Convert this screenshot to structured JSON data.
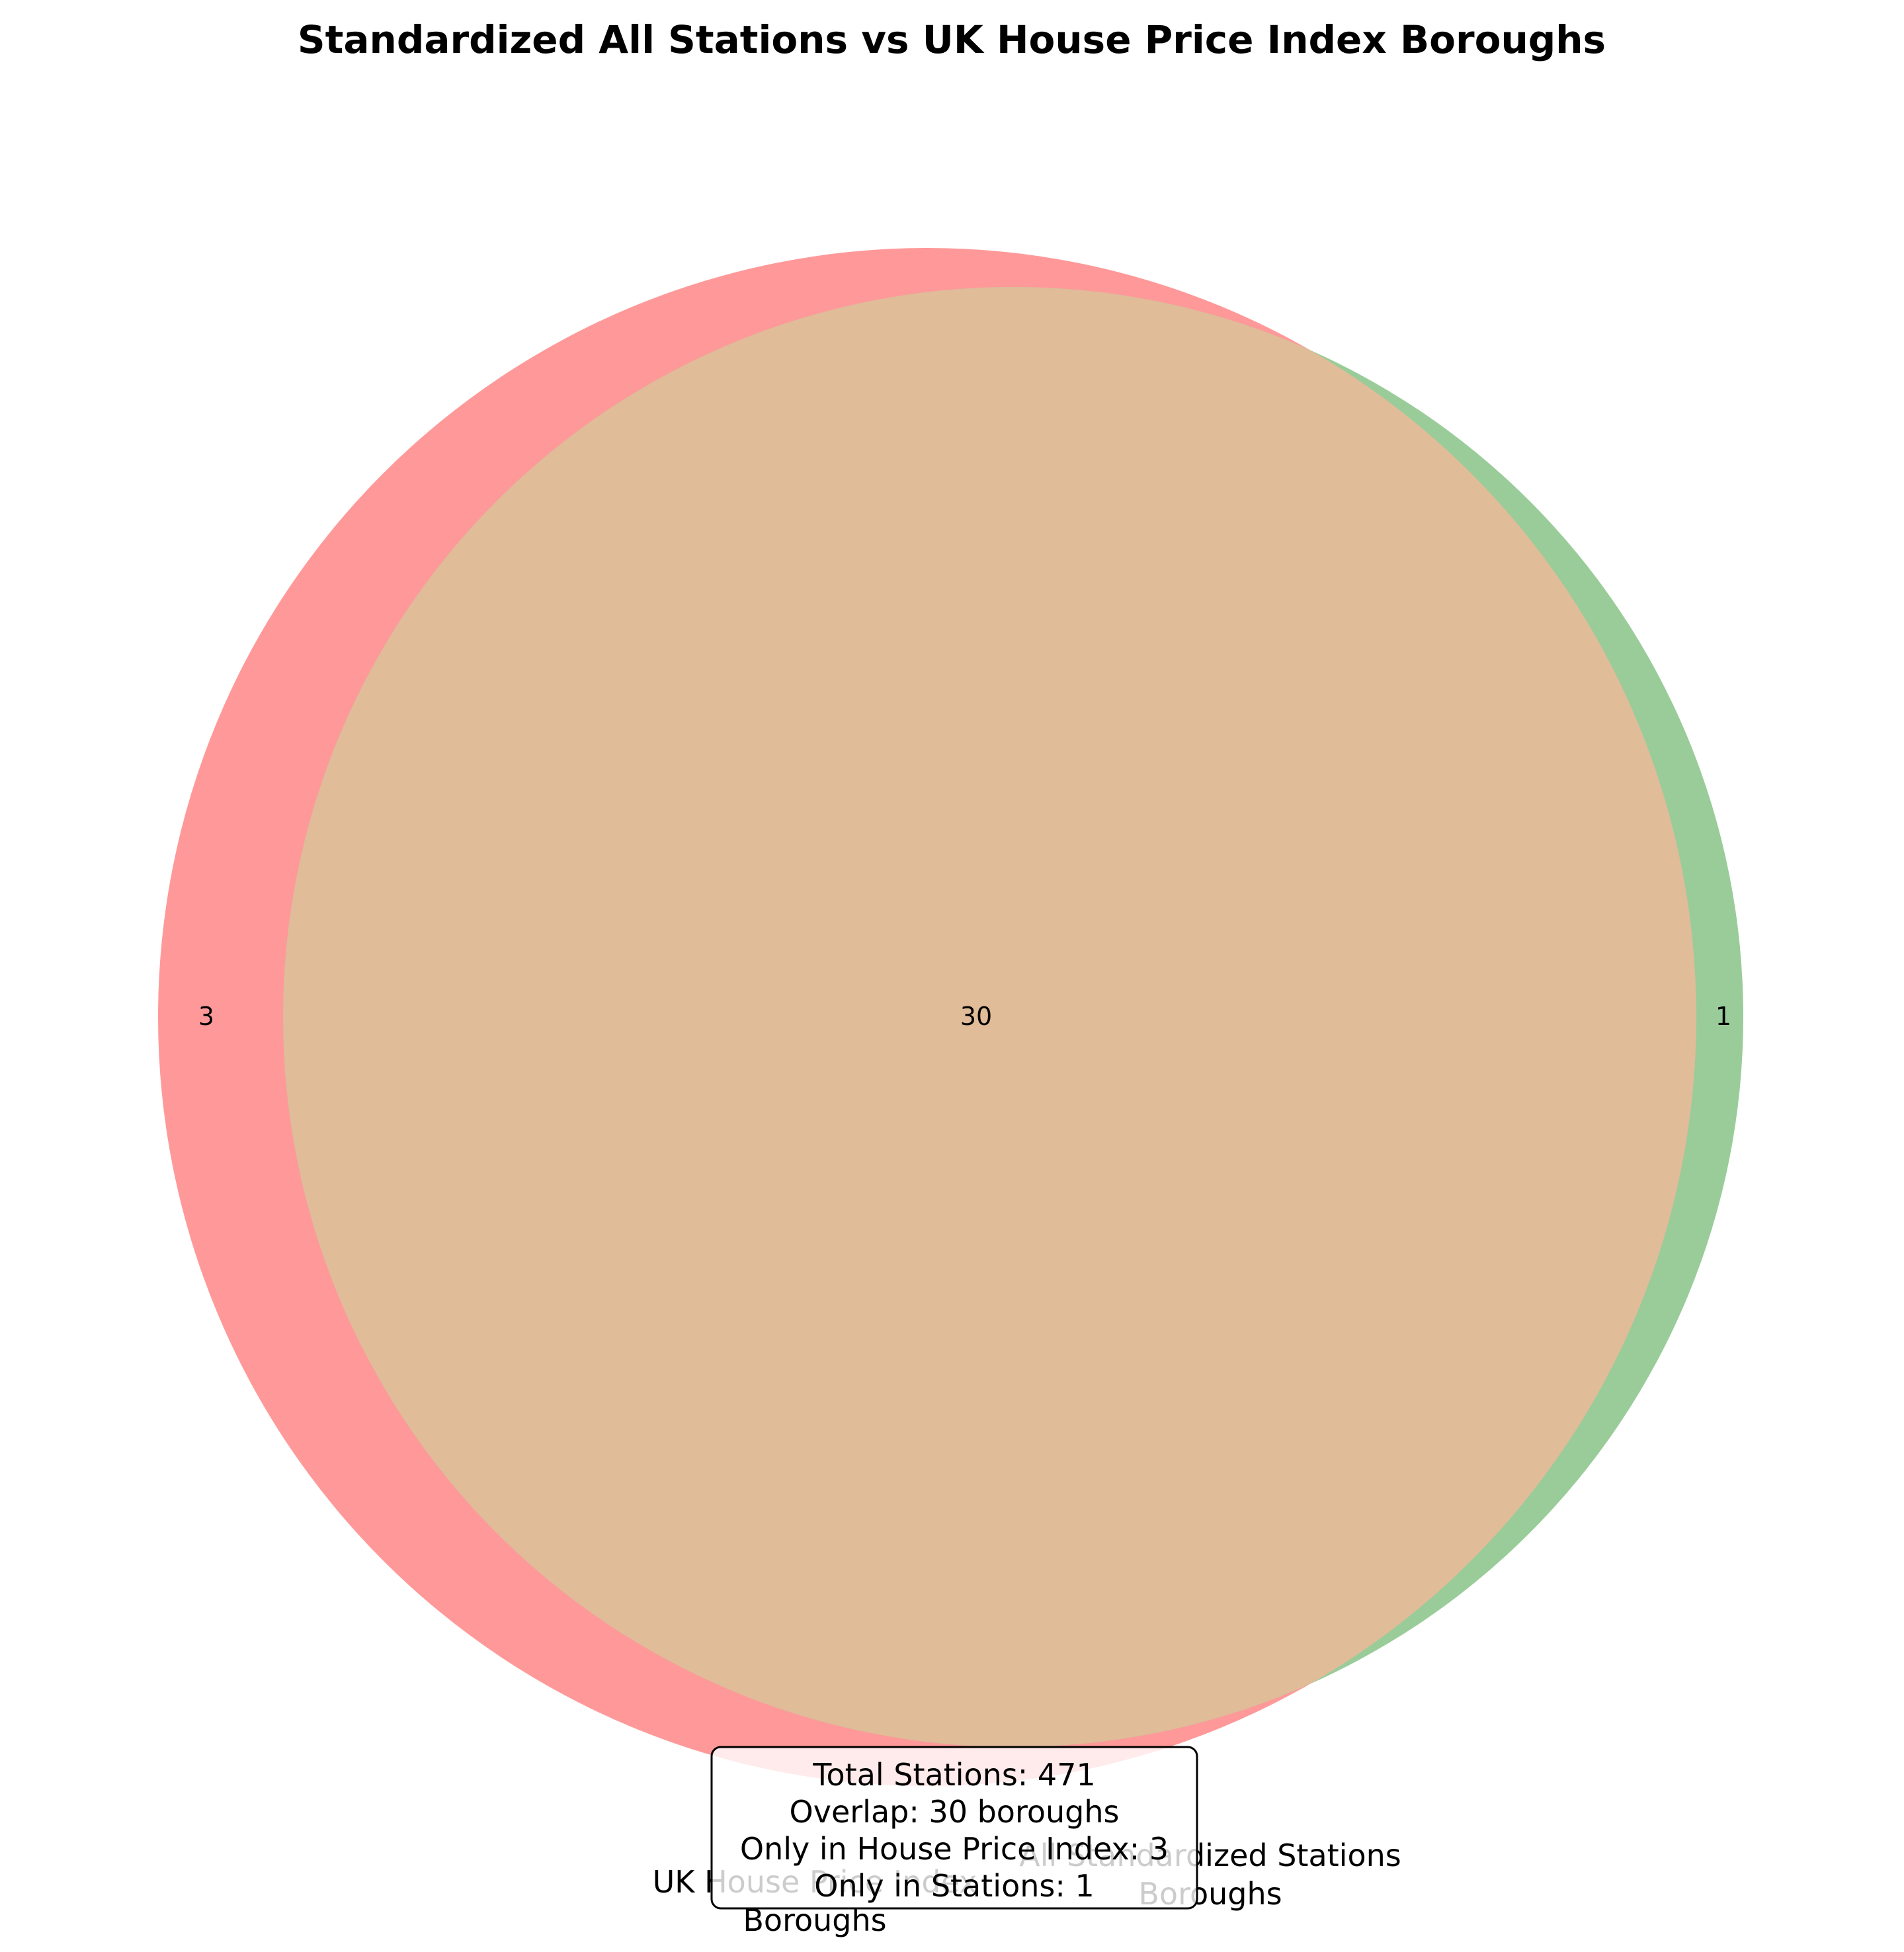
{
  "title": "Standardized All Stations vs UK House Price Index Boroughs",
  "sets": [
    {
      "name_line1": "UK House Price Index",
      "name_line2": "Boroughs",
      "only_count": "3",
      "color": "#ff9999",
      "size": 33
    },
    {
      "name_line1": "All Standardized Stations",
      "name_line2": "Boroughs",
      "only_count": "1",
      "color": "#99cc99",
      "size": 31
    }
  ],
  "overlap": {
    "count": "30",
    "color": "#e0bc99"
  },
  "summary_box": {
    "line1": "Total Stations: 471",
    "line2": "Overlap: 30 boroughs",
    "line3": "Only in House Price Index: 3",
    "line4": "Only in Stations: 1"
  }
}
